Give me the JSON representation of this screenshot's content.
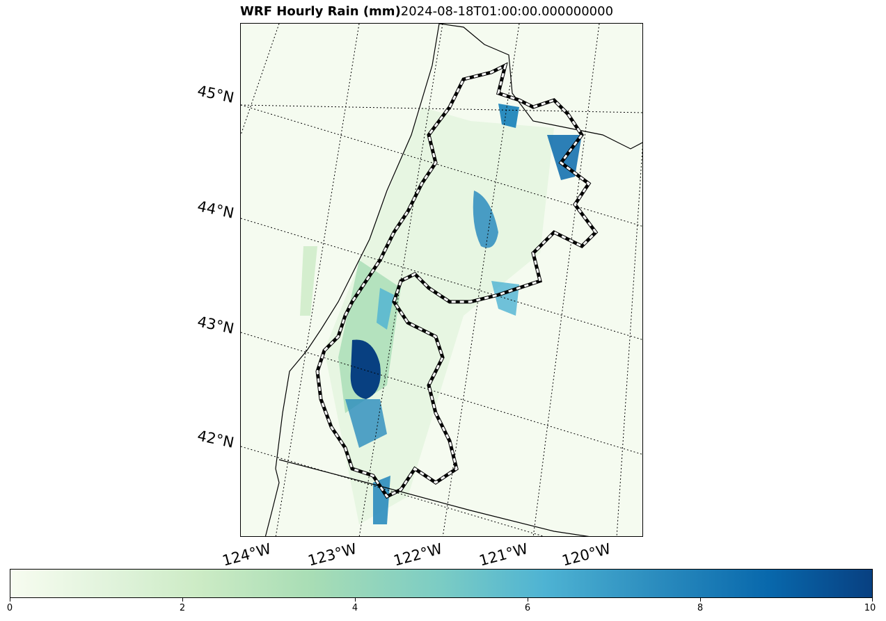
{
  "title": {
    "bold": "WRF Hourly Rain (mm)",
    "time": "2024-08-18T01:00:00.000000000"
  },
  "lat_labels": [
    "45°N",
    "44°N",
    "43°N",
    "42°N"
  ],
  "lon_labels": [
    "124°W",
    "123°W",
    "122°W",
    "121°W",
    "120°W"
  ],
  "colorbar": {
    "ticks": [
      "0",
      "2",
      "4",
      "6",
      "8",
      "10"
    ],
    "min": 0,
    "max": 10,
    "colormap": "GnBu"
  },
  "colors": {
    "background": "#f5fbf0",
    "heavy_rain": "#084081",
    "moderate_rain": "#2b8cbe",
    "light_rain": "#a8ddb5"
  }
}
